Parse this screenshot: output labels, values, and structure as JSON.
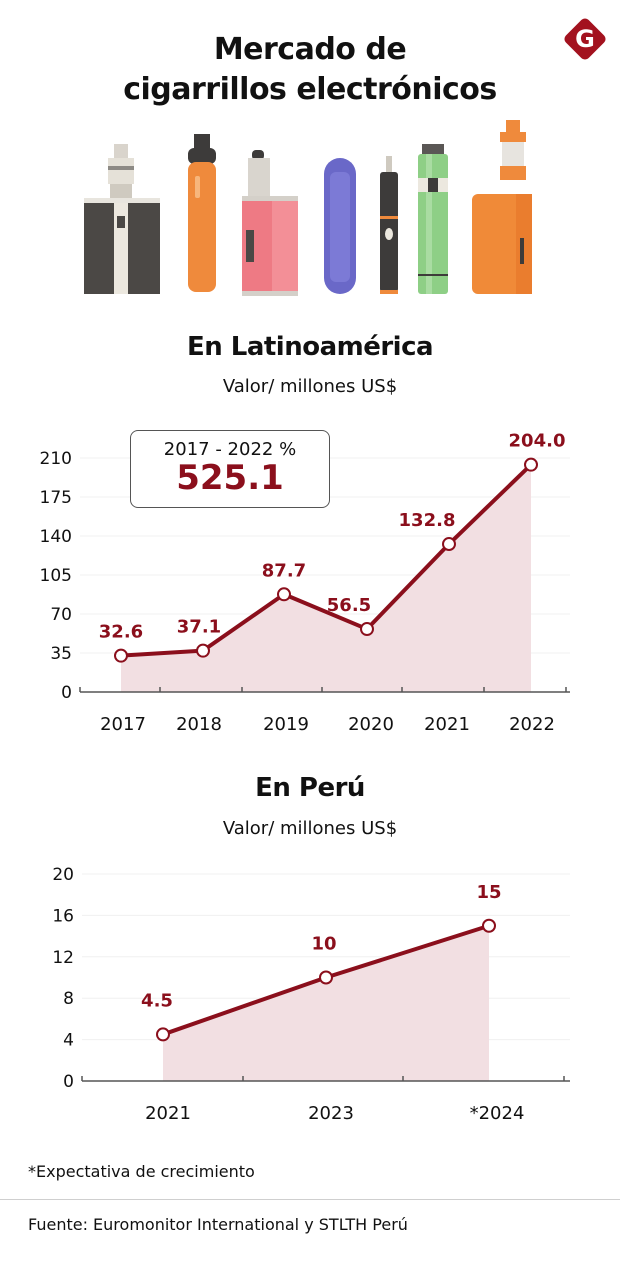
{
  "header": {
    "title_line1": "Mercado de",
    "title_line2": "cigarrillos electrónicos",
    "logo_letter": "G",
    "logo_color": "#a3121f"
  },
  "illustration": {
    "items": [
      "box-mod-gray-icon",
      "pen-vape-orange-icon",
      "box-mod-pink-icon",
      "pod-vape-purple-icon",
      "pen-vape-black-icon",
      "tube-mod-green-icon",
      "box-mod-orange-icon"
    ]
  },
  "colors": {
    "line": "#8b0f1c",
    "area": "#f2dfe2",
    "axis": "#555555",
    "grid": "#f0f0f0"
  },
  "latam": {
    "title": "En Latinoamérica",
    "subtitle": "Valor/ millones US$",
    "kpi_label": "2017 - 2022 %",
    "kpi_value": "525.1"
  },
  "peru": {
    "title": "En Perú",
    "subtitle": "Valor/ millones US$"
  },
  "footer": {
    "footnote": "*Expectativa de crecimiento",
    "source": "Fuente: Euromonitor International y STLTH Perú"
  },
  "chart_data": [
    {
      "type": "area",
      "title": "En Latinoamérica",
      "subtitle": "Valor/ millones US$",
      "xlabel": "",
      "ylabel": "Valor/ millones US$",
      "categories": [
        "2017",
        "2018",
        "2019",
        "2020",
        "2021",
        "2022"
      ],
      "values": [
        32.6,
        37.1,
        87.7,
        56.5,
        132.8,
        204.0
      ],
      "value_labels": [
        "32.6",
        "37.1",
        "87.7",
        "56.5",
        "132.8",
        "204.0"
      ],
      "yticks": [
        0,
        35,
        70,
        105,
        140,
        175,
        210
      ],
      "ylim": [
        0,
        210
      ],
      "grid": true,
      "legend": "none",
      "annotation": {
        "label": "2017 - 2022 %",
        "value": "525.1",
        "placement": "top-left"
      }
    },
    {
      "type": "area",
      "title": "En Perú",
      "subtitle": "Valor/ millones US$",
      "xlabel": "",
      "ylabel": "Valor/ millones US$",
      "categories": [
        "2021",
        "2023",
        "*2024"
      ],
      "values": [
        4.5,
        10,
        15
      ],
      "value_labels": [
        "4.5",
        "10",
        "15"
      ],
      "yticks": [
        0,
        4,
        8,
        12,
        16,
        20
      ],
      "ylim": [
        0,
        20
      ],
      "grid": true,
      "legend": "none"
    }
  ]
}
